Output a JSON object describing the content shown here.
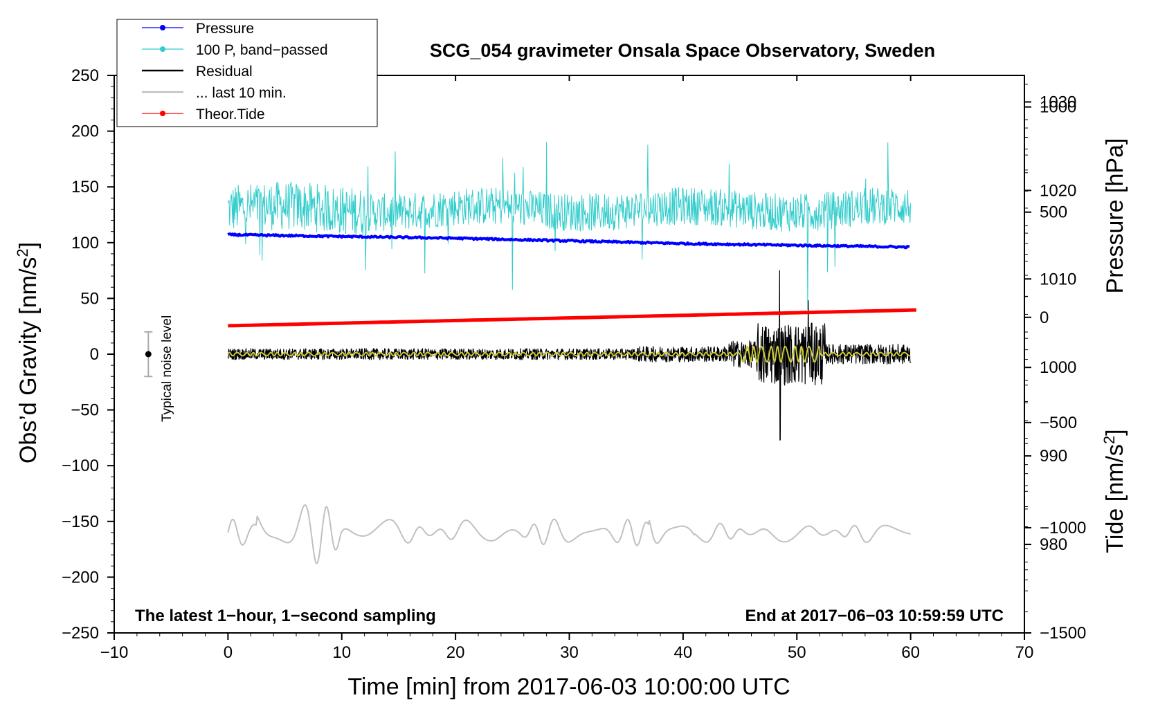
{
  "chart_data": {
    "type": "line",
    "title": "SCG_054 gravimeter Onsala Space Observatory, Sweden",
    "xlabel": "Time [min] from 2017-06-03 10:00:00 UTC",
    "ylabel": "Obs'd Gravity [nm/s2]",
    "ylabel_main": "Obs’d Gravity [nm/s",
    "ylabel_sup": "2",
    "ylabel_end": "]",
    "y2label": "Pressure [hPa]",
    "y3label_main": "Tide [nm/s",
    "y3label_sup": "2",
    "y3label_end": "]",
    "xlim": [
      -10,
      70
    ],
    "ylim": [
      -250,
      250
    ],
    "pressure_axis_range": [
      970,
      1033
    ],
    "tide_axis_range": [
      -1500,
      1150
    ],
    "x_ticks": [
      -10,
      0,
      10,
      20,
      30,
      40,
      50,
      60,
      70
    ],
    "x_tick_labels": [
      "−10",
      "0",
      "10",
      "20",
      "30",
      "40",
      "50",
      "60",
      "70"
    ],
    "y_ticks": [
      250,
      200,
      150,
      100,
      50,
      0,
      -50,
      -100,
      -150,
      -200,
      -250
    ],
    "y_tick_labels": [
      "250",
      "200",
      "150",
      "100",
      "50",
      "0",
      "−50",
      "−100",
      "−150",
      "−200",
      "−250"
    ],
    "pressure_ticks": [
      1030,
      1020,
      1010,
      1000,
      990,
      980
    ],
    "pressure_tick_labels": [
      "1030",
      "1020",
      "1010",
      "1000",
      "990",
      "980"
    ],
    "tide_ticks": [
      1000,
      500,
      0,
      -500,
      -1000,
      -1500
    ],
    "tide_tick_labels": [
      "1000",
      "500",
      "0",
      "−500",
      "−1000",
      "−1500"
    ],
    "legend_placement": "top-left",
    "series": [
      {
        "name": "Pressure",
        "color": "#0000ff",
        "axis": "pressure",
        "x": [
          0,
          10,
          20,
          30,
          40,
          50,
          60
        ],
        "values": [
          1015.0,
          1014.8,
          1014.6,
          1014.3,
          1014.0,
          1013.8,
          1013.6
        ]
      },
      {
        "name": "100 P, band−passed",
        "color": "#33cccc",
        "axis": "gravity",
        "x_range": [
          0,
          60
        ],
        "baseline": 130,
        "amplitude": 18,
        "notes": "oscillating band-passed pressure around 130 nm/s2, spikes to 190 near 28 min and down to 40 near 51 min"
      },
      {
        "name": "Residual",
        "color": "#000000",
        "axis": "gravity",
        "x_range": [
          0,
          60
        ],
        "baseline": 0,
        "amplitude": 5,
        "notes": "quiet until ~44 min, burst near 48.5 min reaching +75 / -77 nm/s2"
      },
      {
        "name": "... last 10 min.",
        "color": "#c0c0c0",
        "axis": "gravity",
        "x_range": [
          0,
          60
        ],
        "baseline": -160,
        "amplitude": 15,
        "notes": "last 10 min residual at 6x time scale, larger swings 3-10 min and ~39 min"
      },
      {
        "name": "Theor.Tide",
        "color": "#ff0000",
        "axis": "tide",
        "x": [
          0,
          60.5
        ],
        "values": [
          -40,
          35
        ]
      },
      {
        "name": "Residual smoothed",
        "color": "#cccc33",
        "axis": "gravity",
        "x_range": [
          0,
          60
        ],
        "baseline": 0,
        "amplitude": 2,
        "in_legend": false
      }
    ],
    "annotations": {
      "noise_label": "Typical noise level",
      "noise_bar": {
        "x": -7,
        "center": 0,
        "half_range": 20
      },
      "bottom_left": "The latest 1−hour, 1−second sampling",
      "bottom_right": "End at 2017−06−03 10:59:59 UTC"
    }
  }
}
